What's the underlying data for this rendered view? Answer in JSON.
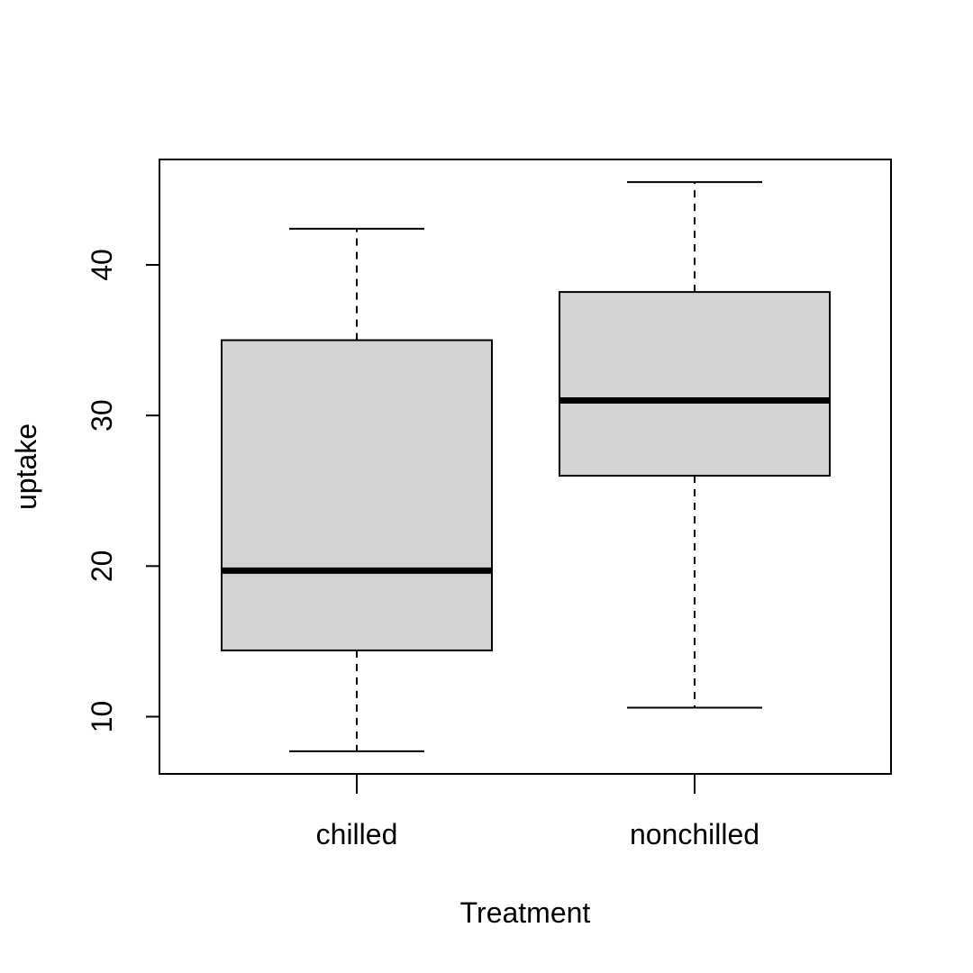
{
  "chart_data": {
    "type": "boxplot",
    "title": "",
    "xlabel": "Treatment",
    "ylabel": "uptake",
    "ylim": [
      6.2,
      47.0
    ],
    "yticks": [
      10,
      20,
      30,
      40
    ],
    "categories": [
      "chilled",
      "nonchilled"
    ],
    "boxes": [
      {
        "category": "chilled",
        "whisker_low": 7.7,
        "q1": 14.4,
        "median": 19.7,
        "q3": 35.0,
        "whisker_high": 42.4
      },
      {
        "category": "nonchilled",
        "whisker_low": 10.6,
        "q1": 26.0,
        "median": 31.0,
        "q3": 38.2,
        "whisker_high": 45.5
      }
    ],
    "box_fill": "#d3d3d3",
    "grid": false,
    "legend": "none"
  }
}
